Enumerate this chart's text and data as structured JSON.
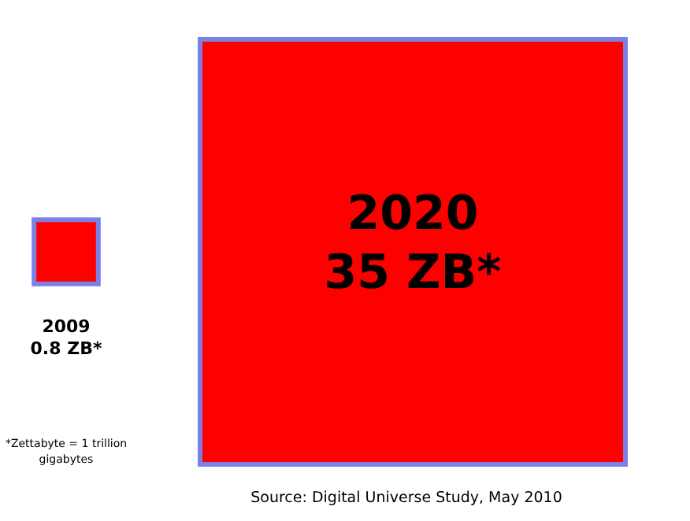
{
  "chart_data": {
    "type": "other",
    "categories": [
      "2009",
      "2020"
    ],
    "values": [
      0.8,
      35
    ],
    "color": "#ff0000",
    "value_labels": [
      "0.8 ZB*",
      "35 ZB*"
    ],
    "annotations": [
      "*Zettabyte = 1 trillion gigabytes",
      "Source: Digital Universe Study, May 2010"
    ]
  }
}
